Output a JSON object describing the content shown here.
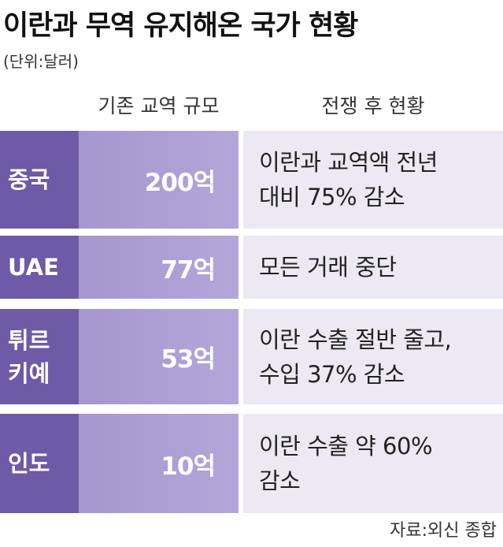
{
  "header": {
    "title": "이란과 무역 유지해온 국가 현황",
    "unit": "(단위:달러)"
  },
  "table": {
    "columns": [
      "기존 교역 규모",
      "전쟁 후 현황"
    ],
    "rows": [
      {
        "country": [
          "중국"
        ],
        "trade": "200억",
        "status": [
          "이란과 교역액 전년",
          "대비 75% 감소"
        ]
      },
      {
        "country": [
          "UAE"
        ],
        "trade": "77억",
        "status": [
          "모든 거래 중단"
        ]
      },
      {
        "country": [
          "튀르",
          "키예"
        ],
        "trade": "53억",
        "status": [
          "이란 수출 절반 줄고,",
          "수입 37% 감소"
        ]
      },
      {
        "country": [
          "인도"
        ],
        "trade": "10억",
        "status": [
          "이란 수출 약 60%",
          "감소"
        ]
      }
    ]
  },
  "source": "자료:외신 종합"
}
